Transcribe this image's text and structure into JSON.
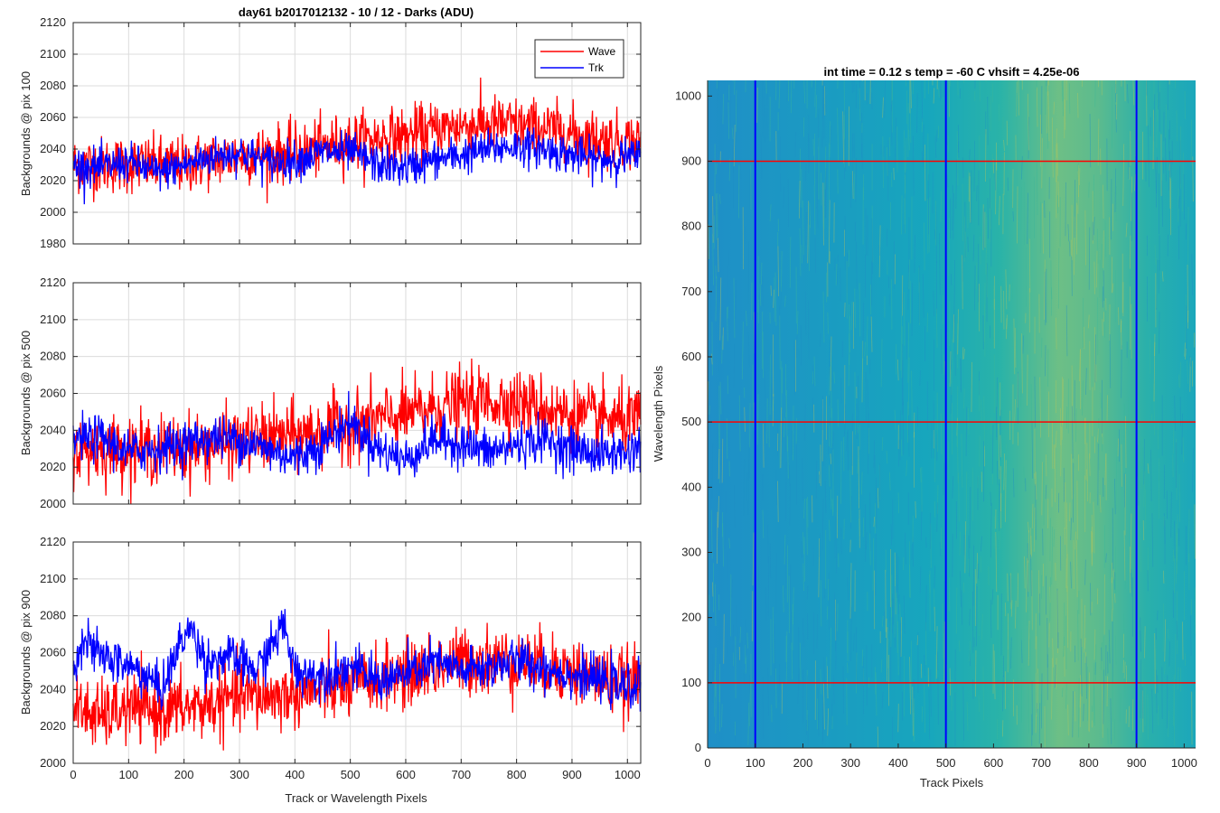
{
  "figure_title": "day61 b2017012132 - 10 / 12 - Darks (ADU)",
  "colors": {
    "wave": "#ff0000",
    "trk": "#0000ff",
    "grid": "#dcdcdc",
    "axis": "#262626"
  },
  "chart_data": [
    {
      "type": "line",
      "title": "day61 b2017012132 - 10 / 12 - Darks (ADU)",
      "ylabel": "Backgrounds @ pix 100",
      "xlabel": "",
      "xlim": [
        0,
        1024
      ],
      "ylim": [
        1980,
        2120
      ],
      "xticks": [
        0,
        100,
        200,
        300,
        400,
        500,
        600,
        700,
        800,
        900,
        1000
      ],
      "yticks": [
        1980,
        2000,
        2020,
        2040,
        2060,
        2080,
        2100,
        2120
      ],
      "grid": true,
      "legend": {
        "placement": "top-right",
        "entries": [
          "Wave",
          "Trk"
        ]
      },
      "series": [
        {
          "name": "Wave",
          "color": "#ff0000",
          "x": [
            0,
            50,
            100,
            150,
            200,
            250,
            300,
            350,
            400,
            450,
            500,
            550,
            600,
            650,
            700,
            750,
            800,
            850,
            900,
            950,
            1000,
            1024
          ],
          "values": [
            2030,
            2030,
            2030,
            2030,
            2030,
            2033,
            2036,
            2037,
            2038,
            2041,
            2045,
            2047,
            2048,
            2052,
            2055,
            2056,
            2055,
            2053,
            2050,
            2046,
            2045,
            2045
          ]
        },
        {
          "name": "Trk",
          "color": "#0000ff",
          "x": [
            0,
            50,
            100,
            150,
            200,
            250,
            300,
            350,
            400,
            450,
            500,
            550,
            600,
            650,
            700,
            750,
            800,
            850,
            900,
            950,
            1000,
            1024
          ],
          "values": [
            2030,
            2028,
            2032,
            2025,
            2030,
            2035,
            2038,
            2032,
            2033,
            2038,
            2038,
            2030,
            2028,
            2033,
            2036,
            2040,
            2042,
            2040,
            2036,
            2033,
            2035,
            2035
          ]
        }
      ]
    },
    {
      "type": "line",
      "title": "",
      "ylabel": "Backgrounds @ pix 500",
      "xlabel": "",
      "xlim": [
        0,
        1024
      ],
      "ylim": [
        2000,
        2120
      ],
      "xticks": [
        0,
        100,
        200,
        300,
        400,
        500,
        600,
        700,
        800,
        900,
        1000
      ],
      "yticks": [
        2000,
        2020,
        2040,
        2060,
        2080,
        2100,
        2120
      ],
      "grid": true,
      "series": [
        {
          "name": "Wave",
          "color": "#ff0000",
          "x": [
            0,
            50,
            100,
            150,
            200,
            250,
            300,
            350,
            400,
            450,
            500,
            550,
            600,
            650,
            700,
            750,
            800,
            850,
            900,
            950,
            1000,
            1024
          ],
          "values": [
            2030,
            2030,
            2030,
            2030,
            2030,
            2032,
            2034,
            2036,
            2037,
            2040,
            2043,
            2046,
            2048,
            2052,
            2055,
            2056,
            2055,
            2052,
            2048,
            2046,
            2045,
            2045
          ]
        },
        {
          "name": "Trk",
          "color": "#0000ff",
          "x": [
            0,
            50,
            100,
            150,
            200,
            250,
            300,
            350,
            400,
            450,
            500,
            550,
            600,
            650,
            700,
            750,
            800,
            850,
            900,
            950,
            1000,
            1024
          ],
          "values": [
            2035,
            2036,
            2028,
            2030,
            2033,
            2036,
            2035,
            2030,
            2025,
            2033,
            2045,
            2030,
            2024,
            2035,
            2033,
            2028,
            2032,
            2035,
            2030,
            2027,
            2028,
            2032
          ]
        }
      ]
    },
    {
      "type": "line",
      "title": "",
      "ylabel": "Backgrounds @ pix 900",
      "xlabel": "Track or Wavelength Pixels",
      "xlim": [
        0,
        1024
      ],
      "ylim": [
        2000,
        2120
      ],
      "xticks": [
        0,
        100,
        200,
        300,
        400,
        500,
        600,
        700,
        800,
        900,
        1000
      ],
      "yticks": [
        2000,
        2020,
        2040,
        2060,
        2080,
        2100,
        2120
      ],
      "grid": true,
      "series": [
        {
          "name": "Wave",
          "color": "#ff0000",
          "x": [
            0,
            50,
            100,
            150,
            200,
            250,
            300,
            350,
            400,
            450,
            500,
            550,
            600,
            650,
            700,
            750,
            800,
            850,
            900,
            950,
            1000,
            1024
          ],
          "values": [
            2030,
            2025,
            2030,
            2028,
            2030,
            2032,
            2036,
            2036,
            2038,
            2040,
            2042,
            2046,
            2048,
            2052,
            2055,
            2056,
            2055,
            2053,
            2050,
            2046,
            2044,
            2044
          ]
        },
        {
          "name": "Trk",
          "color": "#0000ff",
          "x": [
            0,
            15,
            40,
            80,
            120,
            160,
            200,
            215,
            240,
            280,
            330,
            380,
            400,
            450,
            500,
            550,
            600,
            650,
            700,
            750,
            800,
            850,
            900,
            950,
            1000,
            1024
          ],
          "values": [
            2050,
            2068,
            2060,
            2055,
            2050,
            2040,
            2070,
            2072,
            2055,
            2058,
            2050,
            2075,
            2050,
            2048,
            2052,
            2045,
            2048,
            2055,
            2050,
            2052,
            2056,
            2052,
            2048,
            2045,
            2040,
            2045
          ]
        }
      ]
    },
    {
      "type": "heatmap",
      "title": "int time = 0.12 s    temp = -60 C    vhsift = 4.25e-06",
      "xlabel": "Track Pixels",
      "ylabel": "Wavelength Pixels",
      "xlim": [
        0,
        1024
      ],
      "ylim": [
        0,
        1024
      ],
      "xticks": [
        0,
        100,
        200,
        300,
        400,
        500,
        600,
        700,
        800,
        900,
        1000
      ],
      "yticks": [
        0,
        100,
        200,
        300,
        400,
        500,
        600,
        700,
        800,
        900,
        1000
      ],
      "grid": false,
      "colormap": [
        "#1e8fc4",
        "#16a8b8",
        "#3bb79a",
        "#b7c65a"
      ],
      "vertical_markers": [
        100,
        500,
        900
      ],
      "horizontal_markers": [
        100,
        500,
        900
      ],
      "vertical_marker_color": "#0000ff",
      "horizontal_marker_color": "#ff0000"
    }
  ]
}
